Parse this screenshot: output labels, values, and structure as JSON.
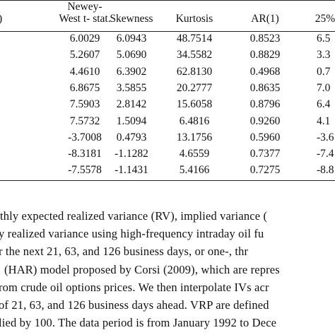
{
  "table": {
    "headers": [
      {
        "label": "Newey-\nWest t- stat.",
        "cx": 0
      },
      {
        "label": "Skewness"
      },
      {
        "label": "Kurtosis"
      },
      {
        "label": "AR(1)"
      },
      {
        "label": "25%"
      }
    ],
    "row_label_stub": ")",
    "rows": [
      [
        "6.0029",
        "6.0943",
        "48.7514",
        "0.8523",
        "6.5"
      ],
      [
        "5.2607",
        "5.0690",
        "34.5582",
        "0.8829",
        "3.3"
      ],
      [
        "4.4610",
        "6.3902",
        "62.8130",
        "0.4968",
        "0.7"
      ],
      [
        "6.8675",
        "3.5855",
        "20.2777",
        "0.8635",
        "7.0"
      ],
      [
        "7.5903",
        "2.8142",
        "15.6058",
        "0.8796",
        "6.4"
      ],
      [
        "7.5732",
        "1.5094",
        "6.4816",
        "0.9260",
        "4.1"
      ],
      [
        "-3.7008",
        "0.4793",
        "13.1756",
        "0.5960",
        "-3.6"
      ],
      [
        "-8.3181",
        "-1.1282",
        "4.6559",
        "0.7377",
        "-7.4"
      ],
      [
        "-7.5578",
        "-1.1431",
        "5.4166",
        "0.7275",
        "-8.8"
      ]
    ]
  },
  "notes": [
    "thly expected realized variance (RV), implied variance (",
    "y realized variance using high-frequency intraday oil fu",
    "r the next 21, 63, and 126 business days, or one-, thr",
    "(HAR) model proposed by Corsi (2009), which are repres",
    "rom crude oil options prices. We then interpolate IVs acr",
    "of 21, 63, and 126 business days ahead. VRP are defined",
    "lied by 100. The data period is from January 1992 to Dece"
  ]
}
